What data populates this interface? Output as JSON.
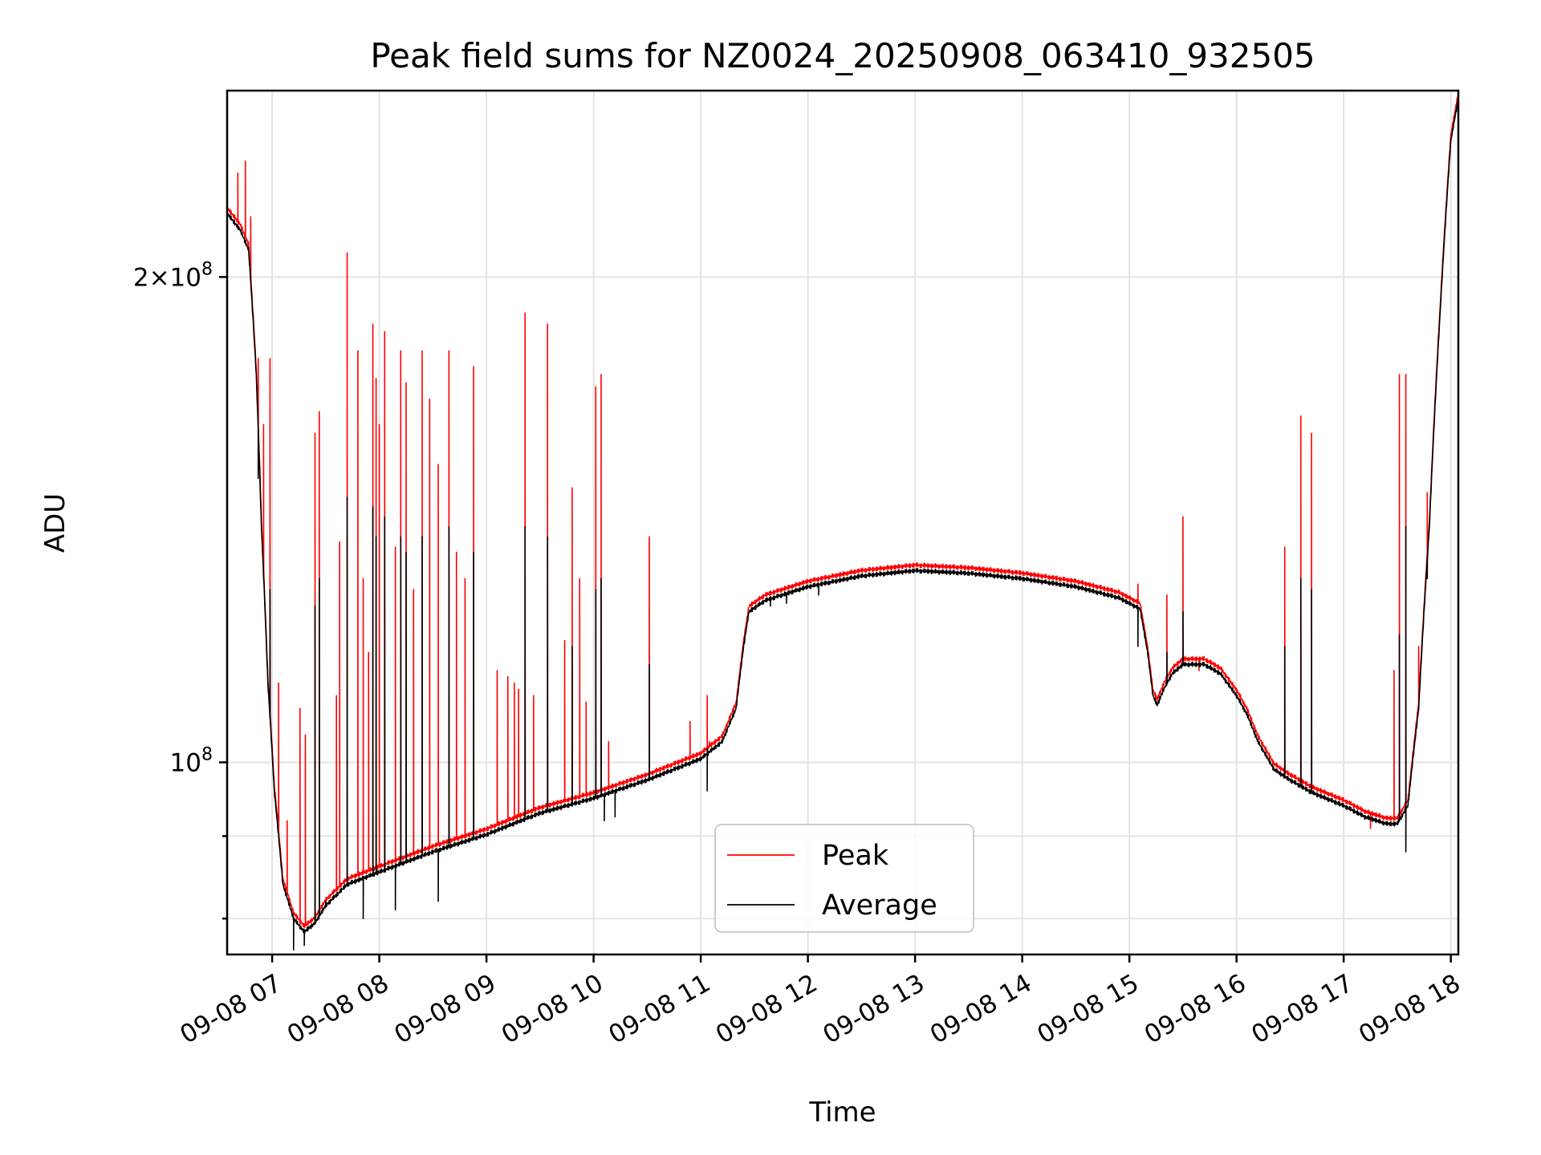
{
  "chart_data": {
    "type": "line",
    "title": "Peak field sums for NZ0024_20250908_063410_932505",
    "xlabel": "Time",
    "ylabel": "ADU",
    "y_scale": "log",
    "grid": true,
    "legend_position": "lower-center",
    "xlim": [
      6.58,
      18.07
    ],
    "ylim": [
      76000000,
      261000000
    ],
    "x_ticks": [
      {
        "value": 7,
        "label": "09-08 07"
      },
      {
        "value": 8,
        "label": "09-08 08"
      },
      {
        "value": 9,
        "label": "09-08 09"
      },
      {
        "value": 10,
        "label": "09-08 10"
      },
      {
        "value": 11,
        "label": "09-08 11"
      },
      {
        "value": 12,
        "label": "09-08 12"
      },
      {
        "value": 13,
        "label": "09-08 13"
      },
      {
        "value": 14,
        "label": "09-08 14"
      },
      {
        "value": 15,
        "label": "09-08 15"
      },
      {
        "value": 16,
        "label": "09-08 16"
      },
      {
        "value": 17,
        "label": "09-08 17"
      },
      {
        "value": 18,
        "label": "09-08 18"
      }
    ],
    "y_ticks": [
      {
        "value": 100000000,
        "mantissa": "",
        "base": "10",
        "exp": "8"
      },
      {
        "value": 200000000,
        "mantissa": "2",
        "base": "10",
        "exp": "8"
      }
    ],
    "y_minor_ticks": [
      80000000,
      90000000
    ],
    "average_baseline": [
      [
        6.58,
        219
      ],
      [
        6.7,
        214
      ],
      [
        6.78,
        208
      ],
      [
        6.85,
        175
      ],
      [
        6.9,
        140
      ],
      [
        6.96,
        112
      ],
      [
        7.02,
        96
      ],
      [
        7.1,
        84
      ],
      [
        7.2,
        80
      ],
      [
        7.3,
        78.5
      ],
      [
        7.4,
        79.5
      ],
      [
        7.5,
        81.5
      ],
      [
        7.7,
        84
      ],
      [
        8.0,
        85.5
      ],
      [
        8.5,
        88
      ],
      [
        9.0,
        90.2
      ],
      [
        9.5,
        93
      ],
      [
        10.0,
        95
      ],
      [
        10.5,
        97.5
      ],
      [
        11.0,
        100.5
      ],
      [
        11.2,
        103
      ],
      [
        11.33,
        108
      ],
      [
        11.4,
        118
      ],
      [
        11.45,
        124
      ],
      [
        11.6,
        126
      ],
      [
        12.0,
        128.5
      ],
      [
        12.5,
        130.5
      ],
      [
        13.0,
        131.5
      ],
      [
        13.5,
        131
      ],
      [
        14.0,
        130
      ],
      [
        14.5,
        128.5
      ],
      [
        14.9,
        126.5
      ],
      [
        15.1,
        124.5
      ],
      [
        15.17,
        117
      ],
      [
        15.22,
        110
      ],
      [
        15.26,
        108.5
      ],
      [
        15.32,
        111
      ],
      [
        15.4,
        113.5
      ],
      [
        15.5,
        115
      ],
      [
        15.7,
        115
      ],
      [
        15.85,
        113.5
      ],
      [
        16.0,
        110
      ],
      [
        16.1,
        107
      ],
      [
        16.2,
        103
      ],
      [
        16.35,
        99
      ],
      [
        16.5,
        97.5
      ],
      [
        16.7,
        95.8
      ],
      [
        17.0,
        94
      ],
      [
        17.2,
        92.5
      ],
      [
        17.4,
        91.6
      ],
      [
        17.5,
        91.6
      ],
      [
        17.6,
        94
      ],
      [
        17.7,
        108
      ],
      [
        17.8,
        140
      ],
      [
        17.9,
        190
      ],
      [
        18.0,
        243
      ],
      [
        18.07,
        258
      ]
    ],
    "series": [
      {
        "name": "Peak",
        "color": "#ff0000",
        "baseline_offset": 1.008,
        "spikes": [
          [
            6.68,
            232
          ],
          [
            6.75,
            236
          ],
          [
            6.8,
            218
          ],
          [
            6.87,
            178
          ],
          [
            6.92,
            162
          ],
          [
            6.98,
            178
          ],
          [
            7.06,
            112
          ],
          [
            7.14,
            92
          ],
          [
            7.26,
            108
          ],
          [
            7.31,
            104
          ],
          [
            7.4,
            160
          ],
          [
            7.44,
            165
          ],
          [
            7.6,
            110
          ],
          [
            7.63,
            137
          ],
          [
            7.7,
            207
          ],
          [
            7.8,
            180
          ],
          [
            7.85,
            130
          ],
          [
            7.9,
            117
          ],
          [
            7.94,
            187
          ],
          [
            7.97,
            173
          ],
          [
            8.0,
            162
          ],
          [
            8.05,
            185
          ],
          [
            8.15,
            136
          ],
          [
            8.2,
            180
          ],
          [
            8.25,
            172
          ],
          [
            8.32,
            128
          ],
          [
            8.4,
            180
          ],
          [
            8.47,
            168
          ],
          [
            8.55,
            153
          ],
          [
            8.65,
            180
          ],
          [
            8.72,
            135
          ],
          [
            8.8,
            130
          ],
          [
            8.88,
            176
          ],
          [
            9.1,
            114
          ],
          [
            9.2,
            113
          ],
          [
            9.26,
            112
          ],
          [
            9.3,
            111
          ],
          [
            9.36,
            190
          ],
          [
            9.44,
            110
          ],
          [
            9.57,
            187
          ],
          [
            9.73,
            119
          ],
          [
            9.8,
            148
          ],
          [
            9.87,
            130
          ],
          [
            9.93,
            109
          ],
          [
            10.02,
            171
          ],
          [
            10.07,
            174
          ],
          [
            10.14,
            103
          ],
          [
            10.52,
            138
          ],
          [
            10.9,
            106
          ],
          [
            11.06,
            110
          ],
          [
            11.08,
            103
          ],
          [
            11.33,
            109
          ],
          [
            15.08,
            129
          ],
          [
            15.35,
            127
          ],
          [
            15.5,
            142
          ],
          [
            15.65,
            114
          ],
          [
            16.45,
            136
          ],
          [
            16.6,
            164
          ],
          [
            16.7,
            160
          ],
          [
            17.25,
            91
          ],
          [
            17.47,
            114
          ],
          [
            17.52,
            174
          ],
          [
            17.58,
            174
          ],
          [
            17.7,
            118
          ],
          [
            17.78,
            147
          ]
        ]
      },
      {
        "name": "Average",
        "color": "#000000",
        "baseline_offset": 1.0,
        "spikes": [
          [
            6.87,
            150
          ],
          [
            6.98,
            128
          ],
          [
            7.4,
            125
          ],
          [
            7.44,
            130
          ],
          [
            7.7,
            146
          ],
          [
            7.94,
            144
          ],
          [
            7.97,
            138
          ],
          [
            8.05,
            142
          ],
          [
            8.2,
            138
          ],
          [
            8.25,
            135
          ],
          [
            8.4,
            138
          ],
          [
            8.65,
            140
          ],
          [
            8.88,
            135
          ],
          [
            9.36,
            140
          ],
          [
            9.57,
            138
          ],
          [
            9.8,
            118
          ],
          [
            10.02,
            128
          ],
          [
            10.07,
            130
          ],
          [
            10.52,
            115
          ],
          [
            11.06,
            102
          ],
          [
            15.08,
            118
          ],
          [
            15.35,
            117
          ],
          [
            15.5,
            124
          ],
          [
            16.45,
            118
          ],
          [
            16.6,
            130
          ],
          [
            16.7,
            128
          ],
          [
            17.52,
            120
          ],
          [
            17.58,
            140
          ],
          [
            17.78,
            130
          ]
        ],
        "dips": [
          [
            7.2,
            76.5
          ],
          [
            7.3,
            77
          ],
          [
            7.5,
            82
          ],
          [
            7.85,
            80
          ],
          [
            8.15,
            81
          ],
          [
            8.55,
            82
          ],
          [
            10.1,
            92
          ],
          [
            10.2,
            92.5
          ],
          [
            11.06,
            96
          ],
          [
            11.65,
            125
          ],
          [
            11.8,
            125.5
          ],
          [
            12.1,
            127
          ],
          [
            17.58,
            88
          ]
        ]
      }
    ],
    "legend": {
      "labels": [
        "Peak",
        "Average"
      ]
    }
  }
}
